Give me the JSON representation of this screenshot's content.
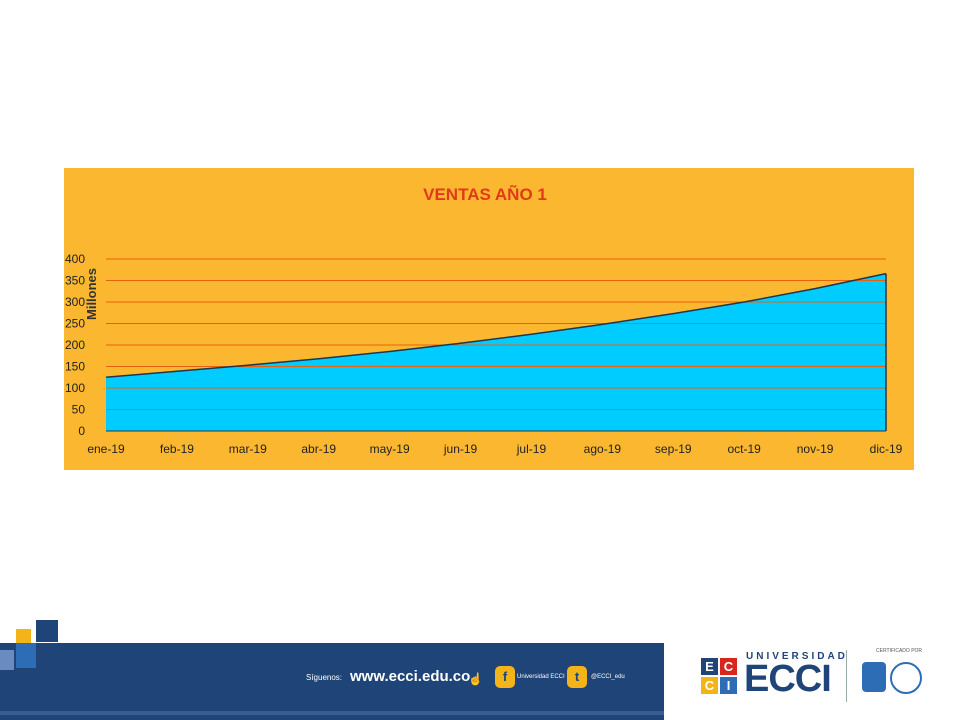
{
  "chart_data": {
    "type": "area",
    "title": "VENTAS AÑO 1",
    "ylabel": "Millones",
    "xlabel": "",
    "categories": [
      "ene-19",
      "feb-19",
      "mar-19",
      "abr-19",
      "may-19",
      "jun-19",
      "jul-19",
      "ago-19",
      "sep-19",
      "oct-19",
      "nov-19",
      "dic-19"
    ],
    "values": [
      125,
      139,
      153,
      168,
      185,
      204,
      225,
      248,
      273,
      300,
      331,
      366
    ],
    "y_ticks": [
      "0",
      "50",
      "100",
      "150",
      "200",
      "250",
      "300",
      "350",
      "400"
    ],
    "ylim": [
      0,
      400
    ],
    "grid": true,
    "colors": {
      "background": "#FBB730",
      "fill": "#00CCFF",
      "gridline": "#E8620E",
      "title": "#E03A1A",
      "outline": "#1F3550"
    }
  },
  "footer": {
    "follow_label": "Síguenos:",
    "website": "www.ecci.edu.co",
    "facebook_label": "Universidad ECCI",
    "twitter_handle": "@ECCI_edu",
    "brand_top": "UNIVERSIDAD",
    "brand_name": "ECCI",
    "logo_letters": [
      "E",
      "C",
      "C",
      "I"
    ],
    "cert_label": "CERTIFICADO POR",
    "icons": [
      "facebook-icon",
      "twitter-icon",
      "hand-cursor-icon"
    ],
    "colors": {
      "navy": "#1F4478",
      "gold": "#F2B418",
      "red": "#D7261E",
      "blue": "#2D6DB5"
    }
  }
}
